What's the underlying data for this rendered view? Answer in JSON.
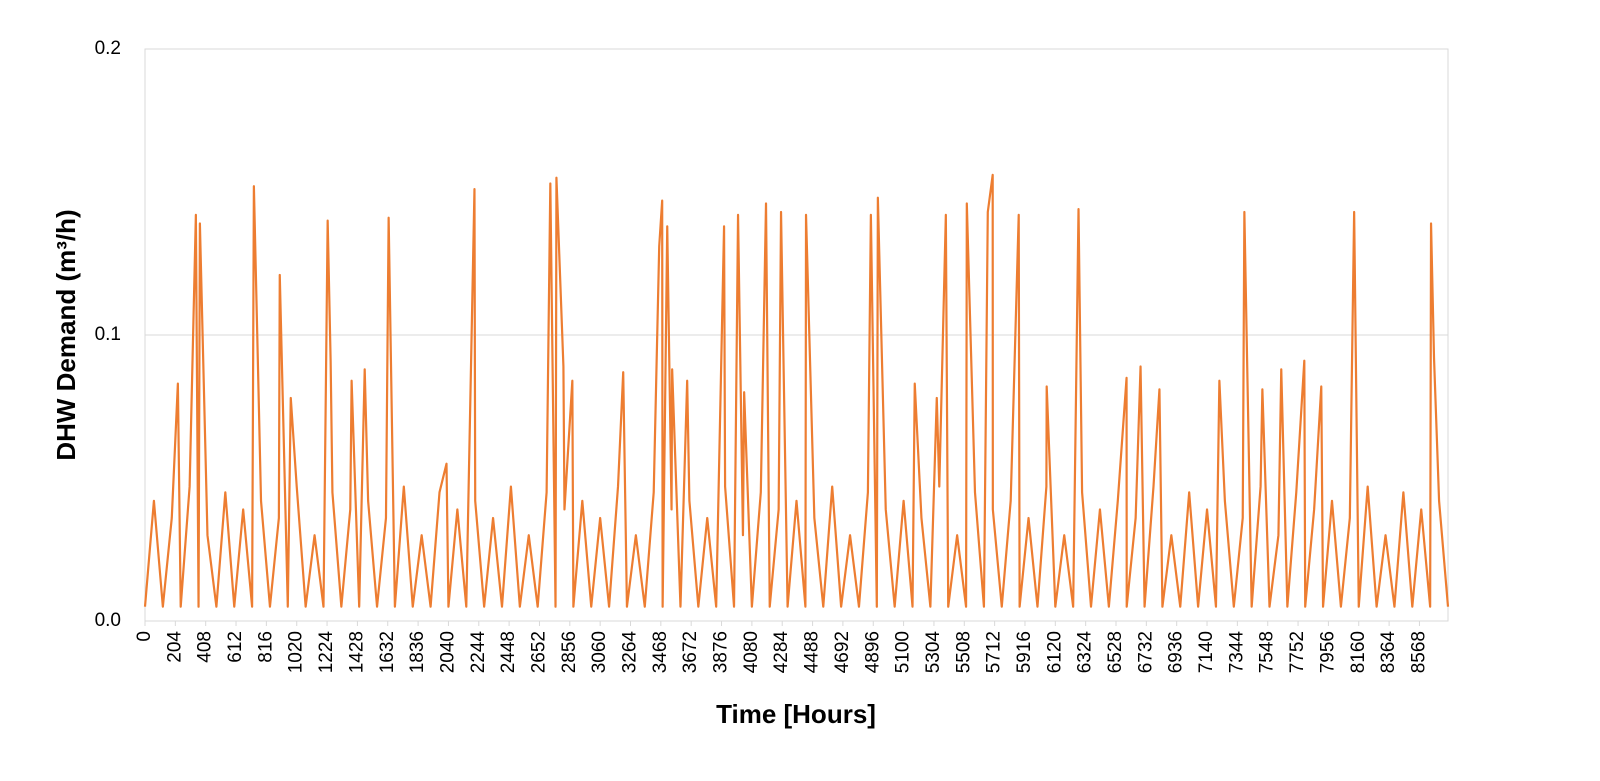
{
  "chart_data": {
    "type": "line",
    "x_label": "Time [Hours]",
    "y_label": "DHW Demand (m³/h)",
    "color": "#ED7D31",
    "grid": true,
    "xlim": [
      0,
      8760
    ],
    "ylim": [
      0,
      0.2
    ],
    "xticks": [
      0,
      204,
      408,
      612,
      816,
      1020,
      1224,
      1428,
      1632,
      1836,
      2040,
      2244,
      2448,
      2652,
      2856,
      3060,
      3264,
      3468,
      3672,
      3876,
      4080,
      4284,
      4488,
      4692,
      4896,
      5100,
      5304,
      5508,
      5712,
      5916,
      6120,
      6324,
      6528,
      6732,
      6936,
      7140,
      7344,
      7548,
      7752,
      7956,
      8160,
      8364,
      8568
    ],
    "yticks": [
      {
        "value": 0,
        "label": "0.0"
      },
      0.1,
      0.2
    ],
    "x": [
      0,
      60,
      120,
      180,
      221,
      240,
      300,
      342,
      360,
      369,
      420,
      480,
      540,
      600,
      660,
      720,
      732,
      780,
      840,
      900,
      906,
      960,
      980,
      1020,
      1080,
      1140,
      1200,
      1228,
      1248,
      1260,
      1320,
      1380,
      1389,
      1440,
      1477,
      1500,
      1560,
      1620,
      1638,
      1680,
      1740,
      1800,
      1860,
      1920,
      1980,
      2027,
      2040,
      2100,
      2160,
      2215,
      2220,
      2280,
      2340,
      2400,
      2460,
      2520,
      2580,
      2640,
      2700,
      2725,
      2760,
      2766,
      2813,
      2820,
      2873,
      2880,
      2940,
      3000,
      3060,
      3120,
      3180,
      3215,
      3240,
      3300,
      3360,
      3420,
      3457,
      3477,
      3480,
      3511,
      3540,
      3544,
      3600,
      3645,
      3660,
      3720,
      3780,
      3840,
      3893,
      3900,
      3960,
      3987,
      4020,
      4028,
      4080,
      4140,
      4175,
      4200,
      4260,
      4276,
      4320,
      4380,
      4440,
      4444,
      4500,
      4560,
      4620,
      4680,
      4740,
      4800,
      4860,
      4880,
      4920,
      4927,
      4980,
      5040,
      5100,
      5160,
      5175,
      5220,
      5280,
      5323,
      5340,
      5384,
      5400,
      5460,
      5520,
      5525,
      5580,
      5640,
      5666,
      5699,
      5700,
      5760,
      5820,
      5874,
      5880,
      5940,
      6000,
      6060,
      6062,
      6120,
      6180,
      6240,
      6276,
      6300,
      6360,
      6420,
      6480,
      6540,
      6599,
      6600,
      6660,
      6693,
      6720,
      6780,
      6820,
      6840,
      6900,
      6960,
      7020,
      7080,
      7140,
      7200,
      7223,
      7260,
      7320,
      7380,
      7391,
      7440,
      7500,
      7512,
      7560,
      7620,
      7639,
      7680,
      7740,
      7794,
      7800,
      7860,
      7908,
      7920,
      7980,
      8040,
      8100,
      8129,
      8160,
      8220,
      8280,
      8340,
      8400,
      8460,
      8520,
      8580,
      8640,
      8646,
      8666,
      8700,
      8760
    ],
    "values": [
      0.005,
      0.042,
      0.005,
      0.036,
      0.083,
      0.005,
      0.047,
      0.142,
      0.005,
      0.139,
      0.03,
      0.005,
      0.045,
      0.005,
      0.039,
      0.005,
      0.152,
      0.042,
      0.005,
      0.036,
      0.121,
      0.005,
      0.078,
      0.047,
      0.005,
      0.03,
      0.005,
      0.14,
      0.091,
      0.045,
      0.005,
      0.039,
      0.084,
      0.005,
      0.088,
      0.042,
      0.005,
      0.036,
      0.141,
      0.005,
      0.047,
      0.005,
      0.03,
      0.005,
      0.045,
      0.055,
      0.005,
      0.039,
      0.005,
      0.151,
      0.042,
      0.005,
      0.036,
      0.005,
      0.047,
      0.005,
      0.03,
      0.005,
      0.045,
      0.153,
      0.005,
      0.155,
      0.089,
      0.039,
      0.084,
      0.005,
      0.042,
      0.005,
      0.036,
      0.005,
      0.047,
      0.087,
      0.005,
      0.03,
      0.005,
      0.045,
      0.131,
      0.147,
      0.005,
      0.138,
      0.039,
      0.088,
      0.005,
      0.084,
      0.042,
      0.005,
      0.036,
      0.005,
      0.138,
      0.047,
      0.005,
      0.142,
      0.03,
      0.08,
      0.005,
      0.045,
      0.146,
      0.005,
      0.039,
      0.143,
      0.005,
      0.042,
      0.005,
      0.142,
      0.036,
      0.005,
      0.047,
      0.005,
      0.03,
      0.005,
      0.045,
      0.142,
      0.005,
      0.148,
      0.039,
      0.005,
      0.042,
      0.005,
      0.083,
      0.036,
      0.005,
      0.078,
      0.047,
      0.142,
      0.005,
      0.03,
      0.005,
      0.146,
      0.045,
      0.005,
      0.143,
      0.156,
      0.039,
      0.005,
      0.042,
      0.142,
      0.005,
      0.036,
      0.005,
      0.047,
      0.082,
      0.005,
      0.03,
      0.005,
      0.144,
      0.045,
      0.005,
      0.039,
      0.005,
      0.042,
      0.085,
      0.005,
      0.036,
      0.089,
      0.005,
      0.047,
      0.081,
      0.005,
      0.03,
      0.005,
      0.045,
      0.005,
      0.039,
      0.005,
      0.084,
      0.042,
      0.005,
      0.036,
      0.143,
      0.005,
      0.047,
      0.081,
      0.005,
      0.03,
      0.088,
      0.005,
      0.045,
      0.091,
      0.005,
      0.039,
      0.082,
      0.005,
      0.042,
      0.005,
      0.036,
      0.143,
      0.005,
      0.047,
      0.005,
      0.03,
      0.005,
      0.045,
      0.005,
      0.039,
      0.005,
      0.139,
      0.092,
      0.042,
      0.005
    ]
  }
}
